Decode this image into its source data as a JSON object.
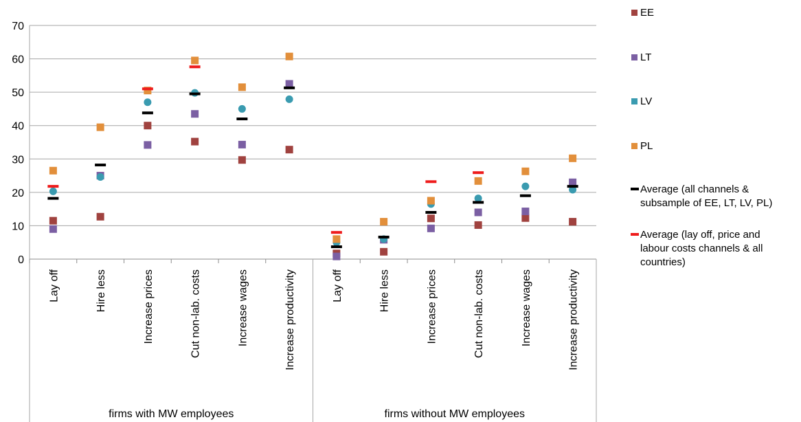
{
  "chart_data": {
    "type": "scatter",
    "title": "",
    "xlabel": "",
    "ylabel": "",
    "ylim": [
      0,
      70
    ],
    "yticks": [
      0,
      10,
      20,
      30,
      40,
      50,
      60,
      70
    ],
    "grid": true,
    "legend_position": "right",
    "groups": [
      {
        "label": "firms with MW employees",
        "categories": [
          "Lay off",
          "Hire less",
          "Increase prices",
          "Cut non-lab. costs",
          "Increase wages",
          "Increase productivity"
        ]
      },
      {
        "label": "firms without MW employees",
        "categories": [
          "Lay off",
          "Hire less",
          "Increase prices",
          "Cut non-lab. costs",
          "Increase wages",
          "Increase productivity"
        ]
      }
    ],
    "series": [
      {
        "name": "EE",
        "marker": "square",
        "color": "#a0423f",
        "values": [
          11.5,
          12.7,
          40.0,
          35.2,
          29.7,
          32.8,
          1.7,
          2.2,
          12.2,
          10.2,
          12.3,
          11.2
        ]
      },
      {
        "name": "LT",
        "marker": "square",
        "color": "#7b5fa3",
        "values": [
          9.0,
          25.0,
          34.2,
          43.5,
          34.3,
          52.5,
          0.8,
          5.8,
          9.2,
          14.0,
          14.3,
          23.0
        ]
      },
      {
        "name": "LV",
        "marker": "circle",
        "color": "#3a9bb0",
        "values": [
          20.3,
          24.6,
          47.0,
          49.8,
          45.0,
          47.9,
          5.0,
          6.0,
          16.5,
          18.2,
          21.8,
          20.8
        ]
      },
      {
        "name": "PL",
        "marker": "square",
        "color": "#e28f3b",
        "values": [
          26.5,
          39.5,
          50.5,
          59.5,
          51.5,
          60.7,
          6.0,
          11.2,
          17.5,
          23.4,
          26.3,
          30.2
        ]
      },
      {
        "name": "Average (all channels & subsample of EE, LT, LV, PL)",
        "marker": "dash",
        "color": "#000000",
        "values": [
          18.2,
          28.2,
          43.8,
          49.5,
          42.0,
          51.3,
          3.7,
          6.6,
          14.0,
          17.0,
          19.0,
          21.8
        ]
      },
      {
        "name": "Average (lay off, price and labour costs channels & all countries)",
        "marker": "dash",
        "color": "#ee1c1c",
        "values": [
          21.8,
          null,
          51.0,
          57.6,
          null,
          null,
          8.0,
          null,
          23.2,
          25.9,
          null,
          null
        ]
      }
    ]
  }
}
